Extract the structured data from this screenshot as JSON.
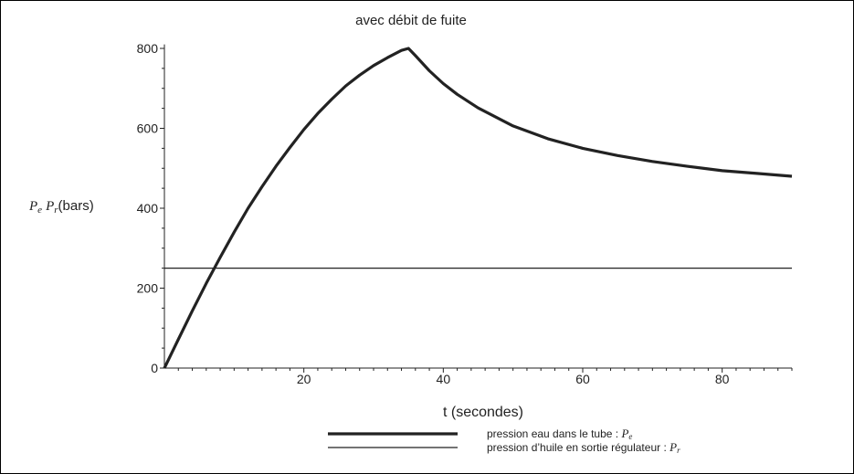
{
  "chart_data": {
    "type": "line",
    "title": "avec débit de fuite",
    "xlabel": "t (secondes)",
    "ylabel_prefix": "P",
    "ylabel_sub_e": "e",
    "ylabel_sub_r": "r",
    "ylabel_suffix": "(bars)",
    "xlim": [
      0,
      90
    ],
    "ylim": [
      0,
      810
    ],
    "xticks": [
      20,
      40,
      60,
      80
    ],
    "yticks": [
      0,
      200,
      400,
      600,
      800
    ],
    "series": [
      {
        "name": "pression eau dans le tube : Pe",
        "legend_text": "pression eau dans le tube : ",
        "legend_sub": "e",
        "color": "#222222",
        "x": [
          0,
          2,
          4,
          6,
          8,
          10,
          12,
          14,
          16,
          18,
          20,
          22,
          24,
          26,
          28,
          30,
          32,
          34,
          35,
          36,
          38,
          40,
          42,
          45,
          50,
          55,
          60,
          65,
          70,
          75,
          80,
          85,
          90
        ],
        "values": [
          0,
          72,
          143,
          212,
          277,
          340,
          400,
          454,
          505,
          552,
          597,
          637,
          673,
          706,
          733,
          757,
          777,
          795,
          800,
          782,
          744,
          712,
          685,
          651,
          606,
          574,
          550,
          532,
          517,
          505,
          494,
          487,
          480
        ]
      },
      {
        "name": "pression d’huile en sortie régulateur : Pr",
        "legend_text": "pression d’huile en sortie régulateur : ",
        "legend_sub": "r",
        "color": "#222222",
        "x": [
          0,
          90
        ],
        "values": [
          250,
          250
        ]
      }
    ]
  }
}
